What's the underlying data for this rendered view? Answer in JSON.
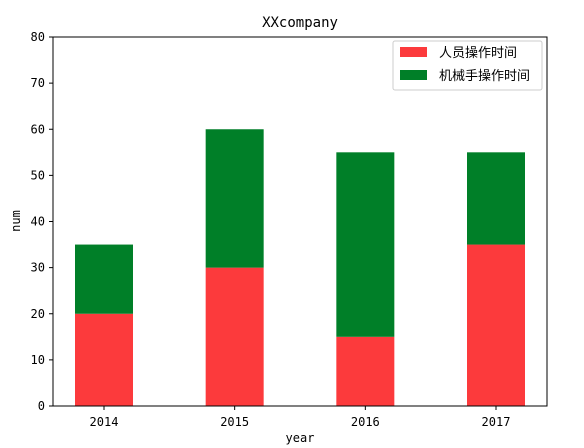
{
  "chart_data": {
    "type": "bar",
    "stacked": true,
    "title": "XXcompany",
    "xlabel": "year",
    "ylabel": "num",
    "categories": [
      "2014",
      "2015",
      "2016",
      "2017"
    ],
    "series": [
      {
        "name": "人员操作时间",
        "color": "#fc3a3c",
        "values": [
          20,
          30,
          15,
          35
        ]
      },
      {
        "name": "机械手操作时间",
        "color": "#007f28",
        "values": [
          15,
          30,
          40,
          20
        ]
      }
    ],
    "ylim": [
      0,
      80
    ],
    "yticks": [
      0,
      10,
      20,
      30,
      40,
      50,
      60,
      70,
      80
    ],
    "grid": false,
    "legend": "top-right"
  }
}
